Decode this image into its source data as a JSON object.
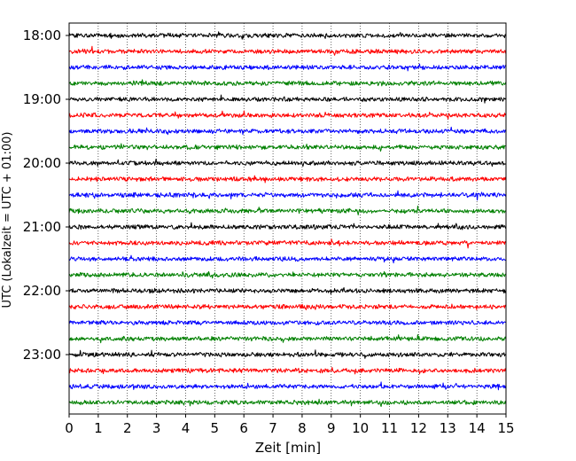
{
  "chart_data": {
    "type": "line",
    "title": "",
    "xlabel": "Zeit  [min]",
    "ylabel": "UTC (Lokalzeit = UTC + 01:00)",
    "xlim": [
      0,
      15
    ],
    "x_ticks": [
      "0",
      "1",
      "2",
      "3",
      "4",
      "5",
      "6",
      "7",
      "8",
      "9",
      "10",
      "11",
      "12",
      "13",
      "14",
      "15"
    ],
    "y_ticks": [
      "18:00",
      "19:00",
      "20:00",
      "21:00",
      "22:00",
      "23:00"
    ],
    "grid": "vertical dotted at each minute",
    "trace_start": "18:00",
    "trace_interval_min": 15,
    "trace_count": 24,
    "trace_colors": [
      "#000000",
      "#ff0000",
      "#0000ff",
      "#008000"
    ],
    "series": [
      {
        "trace_start_time": "18:00",
        "color": "#000000"
      },
      {
        "trace_start_time": "18:15",
        "color": "#ff0000"
      },
      {
        "trace_start_time": "18:30",
        "color": "#0000ff"
      },
      {
        "trace_start_time": "18:45",
        "color": "#008000"
      },
      {
        "trace_start_time": "19:00",
        "color": "#000000"
      },
      {
        "trace_start_time": "19:15",
        "color": "#ff0000"
      },
      {
        "trace_start_time": "19:30",
        "color": "#0000ff"
      },
      {
        "trace_start_time": "19:45",
        "color": "#008000"
      },
      {
        "trace_start_time": "20:00",
        "color": "#000000"
      },
      {
        "trace_start_time": "20:15",
        "color": "#ff0000"
      },
      {
        "trace_start_time": "20:30",
        "color": "#0000ff"
      },
      {
        "trace_start_time": "20:45",
        "color": "#008000"
      },
      {
        "trace_start_time": "21:00",
        "color": "#000000"
      },
      {
        "trace_start_time": "21:15",
        "color": "#ff0000"
      },
      {
        "trace_start_time": "21:30",
        "color": "#0000ff"
      },
      {
        "trace_start_time": "21:45",
        "color": "#008000"
      },
      {
        "trace_start_time": "22:00",
        "color": "#000000"
      },
      {
        "trace_start_time": "22:15",
        "color": "#ff0000"
      },
      {
        "trace_start_time": "22:30",
        "color": "#0000ff"
      },
      {
        "trace_start_time": "22:45",
        "color": "#008000"
      },
      {
        "trace_start_time": "23:00",
        "color": "#000000"
      },
      {
        "trace_start_time": "23:15",
        "color": "#ff0000"
      },
      {
        "trace_start_time": "23:30",
        "color": "#0000ff"
      },
      {
        "trace_start_time": "23:45",
        "color": "#008000"
      }
    ]
  }
}
